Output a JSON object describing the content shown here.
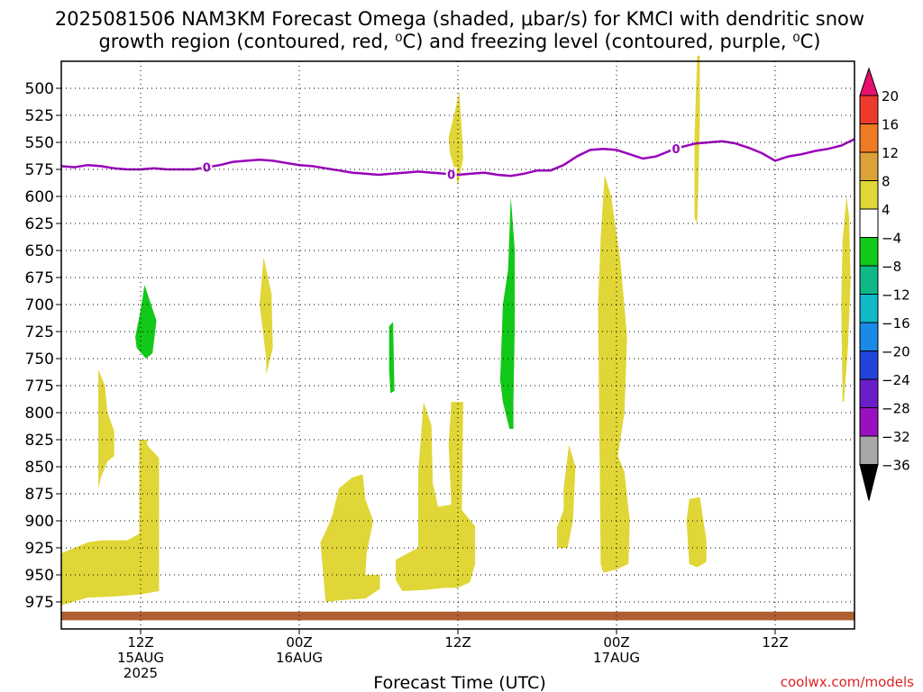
{
  "chart_data": {
    "type": "area",
    "title_line1": "2025081506 NAM3KM Forecast Omega (shaded, μbar/s) for KMCI with dendritic snow",
    "title_line2": "growth region (contoured, red, ⁰C) and freezing level (contoured, purple, ⁰C)",
    "xlabel": "Forecast Time (UTC)",
    "credit": "coolwx.com/models",
    "x_range_hours": [
      0,
      60
    ],
    "y_range_mb": [
      1000,
      475
    ],
    "y_ticks": [
      500,
      525,
      550,
      575,
      600,
      625,
      650,
      675,
      700,
      725,
      750,
      775,
      800,
      825,
      850,
      875,
      900,
      925,
      950,
      975
    ],
    "x_ticks": [
      {
        "hour": 6,
        "line1": "12Z",
        "line2": "15AUG",
        "line3": "2025"
      },
      {
        "hour": 18,
        "line1": "00Z",
        "line2": "16AUG",
        "line3": ""
      },
      {
        "hour": 30,
        "line1": "12Z",
        "line2": "",
        "line3": ""
      },
      {
        "hour": 42,
        "line1": "00Z",
        "line2": "17AUG",
        "line3": ""
      },
      {
        "hour": 54,
        "line1": "12Z",
        "line2": "",
        "line3": ""
      }
    ],
    "colorbar": {
      "labels": [
        "20",
        "16",
        "12",
        "8",
        "4",
        "−4",
        "−8",
        "−12",
        "−16",
        "−20",
        "−24",
        "−28",
        "−32",
        "−36"
      ],
      "colors": [
        "#e8106e",
        "#ee3a2c",
        "#ee7a22",
        "#dca23a",
        "#e0d637",
        "#ffffff",
        "#12c818",
        "#10b888",
        "#10b8c8",
        "#1a8ae8",
        "#2244d8",
        "#6a1ec8",
        "#9a10c0",
        "#a8a8a8",
        "#000000"
      ]
    },
    "freezing_level": {
      "color": "#9900bb",
      "label": "0",
      "points": [
        [
          0,
          572
        ],
        [
          1,
          573
        ],
        [
          2,
          571
        ],
        [
          3,
          572
        ],
        [
          4,
          574
        ],
        [
          5,
          575
        ],
        [
          6,
          575
        ],
        [
          7,
          574
        ],
        [
          8,
          575
        ],
        [
          9,
          575
        ],
        [
          10,
          575
        ],
        [
          11,
          573
        ],
        [
          12,
          571
        ],
        [
          13,
          568
        ],
        [
          14,
          567
        ],
        [
          15,
          566
        ],
        [
          16,
          567
        ],
        [
          17,
          569
        ],
        [
          18,
          571
        ],
        [
          19,
          572
        ],
        [
          20,
          574
        ],
        [
          21,
          576
        ],
        [
          22,
          578
        ],
        [
          23,
          579
        ],
        [
          24,
          580
        ],
        [
          25,
          579
        ],
        [
          26,
          578
        ],
        [
          27,
          577
        ],
        [
          28,
          578
        ],
        [
          29,
          579
        ],
        [
          30,
          580
        ],
        [
          31,
          579
        ],
        [
          32,
          578
        ],
        [
          33,
          580
        ],
        [
          34,
          581
        ],
        [
          35,
          579
        ],
        [
          36,
          576
        ],
        [
          37,
          576
        ],
        [
          38,
          571
        ],
        [
          39,
          563
        ],
        [
          40,
          557
        ],
        [
          41,
          556
        ],
        [
          42,
          557
        ],
        [
          43,
          561
        ],
        [
          44,
          565
        ],
        [
          45,
          563
        ],
        [
          46,
          558
        ],
        [
          47,
          554
        ],
        [
          48,
          551
        ],
        [
          49,
          550
        ],
        [
          50,
          549
        ],
        [
          51,
          551
        ],
        [
          52,
          555
        ],
        [
          53,
          560
        ],
        [
          54,
          567
        ],
        [
          55,
          563
        ],
        [
          56,
          561
        ],
        [
          57,
          558
        ],
        [
          58,
          556
        ],
        [
          59,
          553
        ],
        [
          60,
          547
        ]
      ],
      "label_hours": [
        11,
        29.5,
        46.5
      ]
    },
    "omega_regions": [
      {
        "value": "4 to 8",
        "color": "#e0d637",
        "points": [
          [
            0,
            978
          ],
          [
            0,
            930
          ],
          [
            2,
            920
          ],
          [
            3,
            918
          ],
          [
            5,
            918
          ],
          [
            5.9,
            912
          ],
          [
            5.9,
            825
          ],
          [
            6.5,
            825
          ],
          [
            6.5,
            830
          ],
          [
            7.4,
            842
          ],
          [
            7.4,
            965
          ],
          [
            6,
            968
          ],
          [
            4,
            970
          ],
          [
            2,
            971
          ],
          [
            0,
            978
          ]
        ]
      },
      {
        "value": "4 to 8",
        "color": "#e0d637",
        "points": [
          [
            2.8,
            870
          ],
          [
            2.8,
            760
          ],
          [
            3.3,
            775
          ],
          [
            3.5,
            800
          ],
          [
            4,
            817
          ],
          [
            4,
            840
          ],
          [
            3.5,
            845
          ],
          [
            3,
            860
          ]
        ]
      },
      {
        "value": "4 to 8",
        "color": "#e0d637",
        "points": [
          [
            15.5,
            750
          ],
          [
            15.0,
            700
          ],
          [
            15.3,
            656
          ],
          [
            15.9,
            690
          ],
          [
            16.0,
            740
          ],
          [
            15.5,
            765
          ]
        ]
      },
      {
        "value": "4 to 8",
        "color": "#e0d637",
        "points": [
          [
            20,
            975
          ],
          [
            19.6,
            920
          ],
          [
            20,
            910
          ],
          [
            20.5,
            895
          ],
          [
            21,
            870
          ],
          [
            22,
            860
          ],
          [
            22.8,
            857
          ],
          [
            23.0,
            880
          ],
          [
            23.6,
            900
          ],
          [
            23.1,
            930
          ],
          [
            23,
            950
          ],
          [
            24.1,
            950
          ],
          [
            24.1,
            963
          ],
          [
            23.0,
            972
          ],
          [
            21.5,
            973
          ]
        ]
      },
      {
        "value": "4 to 8",
        "color": "#e0d637",
        "points": [
          [
            25.3,
            955
          ],
          [
            25.3,
            936
          ],
          [
            26.2,
            930
          ],
          [
            27.0,
            925
          ],
          [
            27.0,
            855
          ],
          [
            27.4,
            790
          ],
          [
            28.0,
            812
          ],
          [
            28.1,
            865
          ],
          [
            28.5,
            887
          ],
          [
            29.5,
            885
          ],
          [
            29.3,
            830
          ],
          [
            29.5,
            790
          ],
          [
            30.4,
            790
          ],
          [
            30.3,
            890
          ],
          [
            31.3,
            905
          ],
          [
            31.3,
            940
          ],
          [
            30.9,
            957
          ],
          [
            30,
            962
          ],
          [
            29,
            962
          ],
          [
            27.5,
            964
          ],
          [
            25.8,
            965
          ]
        ]
      },
      {
        "value": "-4 to -8",
        "color": "#12c818",
        "points": [
          [
            5.6,
            730
          ],
          [
            6,
            705
          ],
          [
            6.3,
            682
          ],
          [
            7.2,
            715
          ],
          [
            6.9,
            745
          ],
          [
            6.4,
            750
          ],
          [
            5.7,
            740
          ]
        ]
      },
      {
        "value": "-4 to -8",
        "color": "#12c818",
        "points": [
          [
            24.8,
            760
          ],
          [
            24.8,
            720
          ],
          [
            25.1,
            716
          ],
          [
            25.2,
            780
          ],
          [
            24.9,
            782
          ]
        ]
      },
      {
        "value": "-4 to -8",
        "color": "#12c818",
        "points": [
          [
            33.4,
            790
          ],
          [
            33.2,
            770
          ],
          [
            33.4,
            700
          ],
          [
            33.8,
            668
          ],
          [
            34.0,
            600
          ],
          [
            34.3,
            650
          ],
          [
            34.3,
            720
          ],
          [
            34.2,
            790
          ],
          [
            34.2,
            815
          ],
          [
            33.9,
            815
          ]
        ]
      },
      {
        "value": "4 to 8",
        "color": "#e0d637",
        "points": [
          [
            29.4,
            560
          ],
          [
            29.3,
            545
          ],
          [
            29.8,
            520
          ],
          [
            30.1,
            503
          ],
          [
            30.3,
            540
          ],
          [
            30.4,
            565
          ],
          [
            30.0,
            590
          ],
          [
            29.7,
            573
          ]
        ]
      },
      {
        "value": "4 to 8",
        "color": "#e0d637",
        "points": [
          [
            37.5,
            925
          ],
          [
            37.5,
            906
          ],
          [
            38,
            890
          ],
          [
            38,
            870
          ],
          [
            38.4,
            830
          ],
          [
            38.9,
            850
          ],
          [
            38.7,
            900
          ],
          [
            38.3,
            925
          ]
        ]
      },
      {
        "value": "4 to 8",
        "color": "#e0d637",
        "points": [
          [
            40.8,
            940
          ],
          [
            40.6,
            700
          ],
          [
            40.8,
            638
          ],
          [
            41.1,
            580
          ],
          [
            41.6,
            600
          ],
          [
            42.3,
            660
          ],
          [
            42.8,
            730
          ],
          [
            42.6,
            800
          ],
          [
            42.1,
            840
          ],
          [
            42.6,
            855
          ],
          [
            43.0,
            900
          ],
          [
            42.9,
            940
          ],
          [
            42,
            945
          ],
          [
            41,
            948
          ]
        ]
      },
      {
        "value": "4 to 8",
        "color": "#e0d637",
        "points": [
          [
            47.5,
            940
          ],
          [
            47.3,
            900
          ],
          [
            47.5,
            880
          ],
          [
            48.3,
            878
          ],
          [
            48.8,
            918
          ],
          [
            48.8,
            938
          ],
          [
            48.1,
            943
          ]
        ]
      },
      {
        "value": "4 to 8",
        "color": "#e0d637",
        "points": [
          [
            47.9,
            620
          ],
          [
            47.9,
            545
          ],
          [
            48.1,
            470
          ],
          [
            48.3,
            470
          ],
          [
            48.3,
            530
          ],
          [
            48.2,
            585
          ],
          [
            48.1,
            625
          ]
        ]
      },
      {
        "value": "4 to 8",
        "color": "#e0d637",
        "points": [
          [
            59.1,
            790
          ],
          [
            59.0,
            700
          ],
          [
            59.1,
            640
          ],
          [
            59.4,
            600
          ],
          [
            59.6,
            620
          ],
          [
            59.7,
            680
          ],
          [
            59.5,
            740
          ],
          [
            59.2,
            790
          ]
        ]
      }
    ],
    "ground_color": "#b06030"
  }
}
